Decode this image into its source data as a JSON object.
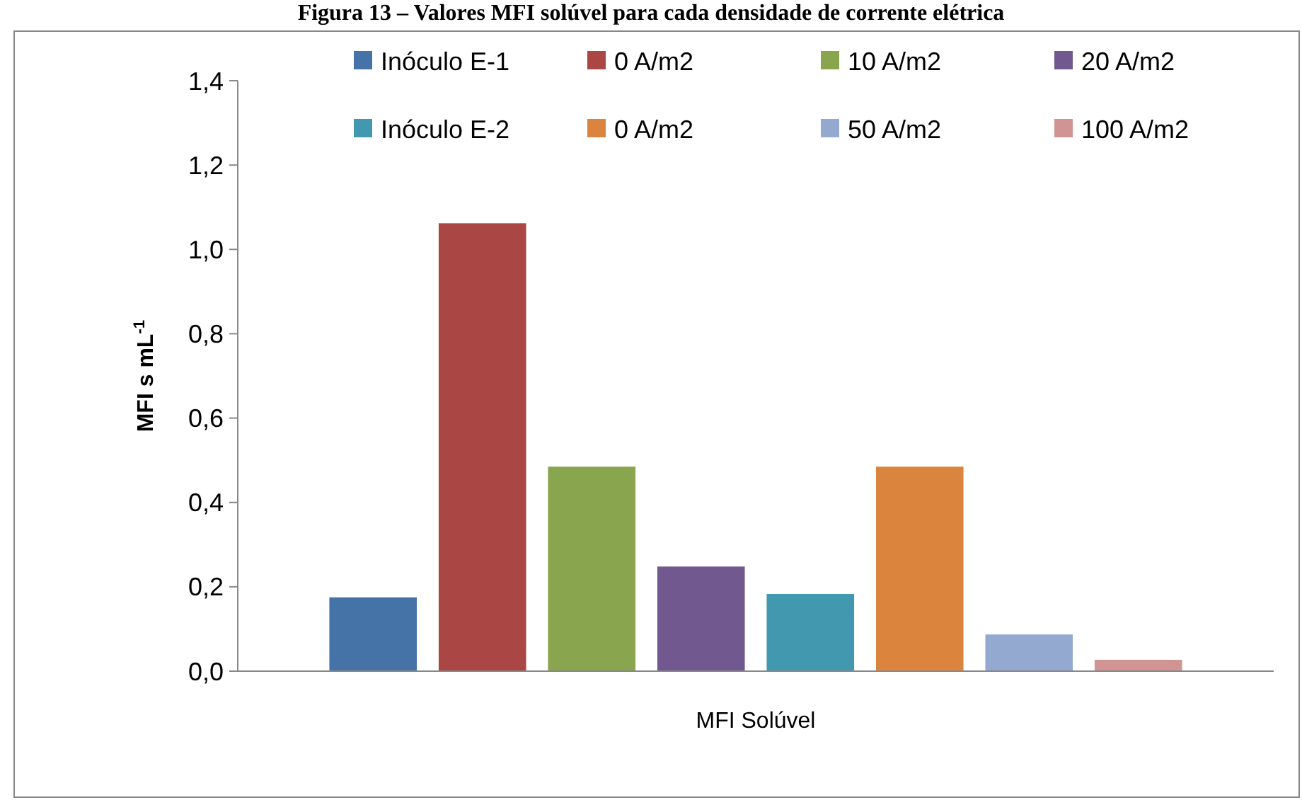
{
  "chart_data": {
    "type": "bar",
    "title": "Figura 13 – Valores MFI solúvel para cada densidade de corrente elétrica",
    "ylabel": "MFI s mL$^{-1}$",
    "categories": [
      "MFI Solúvel"
    ],
    "series": [
      {
        "name": "Inóculo E-1",
        "color": "#4572a7",
        "values": [
          0.175
        ]
      },
      {
        "name": "0 A/m2",
        "color": "#aa4643",
        "values": [
          1.062
        ]
      },
      {
        "name": "10 A/m2",
        "color": "#89a54e",
        "values": [
          0.485
        ]
      },
      {
        "name": "20 A/m2",
        "color": "#71588f",
        "values": [
          0.248
        ]
      },
      {
        "name": "Inóculo E-2",
        "color": "#4198af",
        "values": [
          0.183
        ]
      },
      {
        "name": "0 A/m2",
        "color": "#db843d",
        "values": [
          0.485
        ]
      },
      {
        "name": "50 A/m2",
        "color": "#93a9cf",
        "values": [
          0.087
        ]
      },
      {
        "name": "100 A/m2",
        "color": "#d09493",
        "values": [
          0.027
        ]
      }
    ],
    "ylim": [
      0,
      1.4
    ],
    "yticks": [
      {
        "value": 0,
        "label": "0,0"
      },
      {
        "value": 0.2,
        "label": "0,2"
      },
      {
        "value": 0.4,
        "label": "0,4"
      },
      {
        "value": 0.6,
        "label": "0,6"
      },
      {
        "value": 0.8,
        "label": "0,8"
      },
      {
        "value": 1,
        "label": "1,0"
      },
      {
        "value": 1.2,
        "label": "1,2"
      },
      {
        "value": 1.4,
        "label": "1,4"
      }
    ],
    "grid": false,
    "legend": "top right"
  }
}
